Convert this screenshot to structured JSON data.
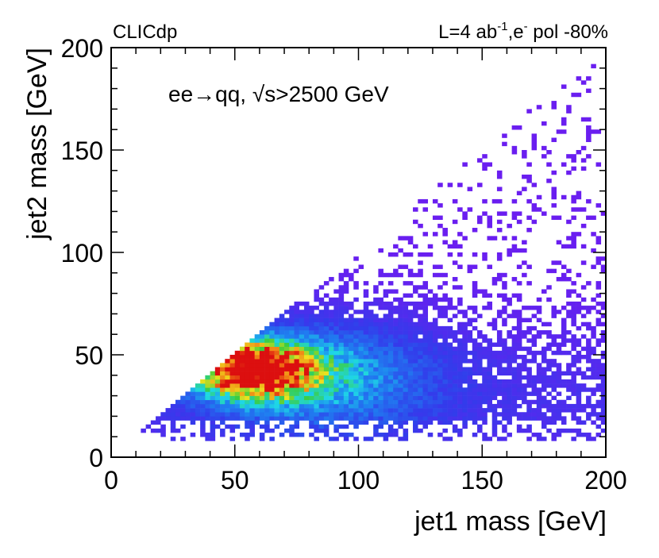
{
  "chart_data": {
    "type": "heatmap",
    "experiment_label": "CLICdp",
    "luminosity_label": {
      "prefix": "L=4 ab",
      "sup1": "-1",
      "mid": ",e",
      "sup2": "-",
      "suffix": " pol -80%"
    },
    "annotation": {
      "process": "ee→qq, ",
      "sqrt_symbol": "√",
      "cut": "s>2500 GeV"
    },
    "xlabel": "jet1 mass [GeV]",
    "ylabel": "jet2 mass [GeV]",
    "xlim": [
      0,
      200
    ],
    "ylim": [
      0,
      200
    ],
    "xticks": [
      "0",
      "50",
      "100",
      "150",
      "200"
    ],
    "yticks": [
      "0",
      "50",
      "100",
      "150",
      "200"
    ],
    "bins": {
      "nx": 100,
      "ny": 100
    },
    "distribution": {
      "peak_x": 57,
      "peak_y": 43,
      "lower_edge_jet2": 8,
      "constraint": "jet2 <= jet1"
    },
    "colors": {
      "low": "#6a1ef0",
      "mid": "#1fd8e6",
      "high": "#f2e21b",
      "max": "#e01010"
    }
  }
}
